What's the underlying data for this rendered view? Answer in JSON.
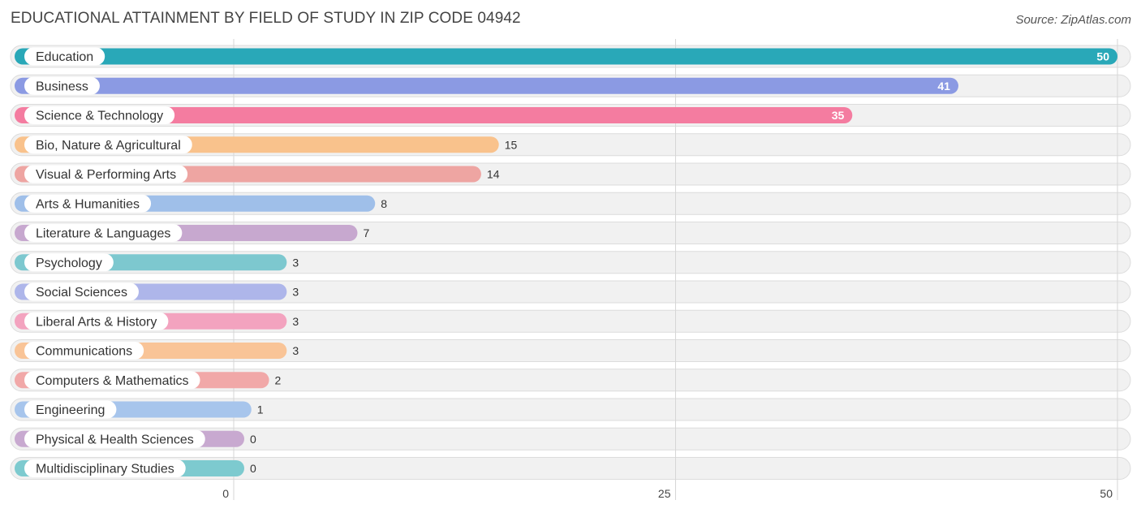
{
  "chart_data": {
    "type": "bar",
    "orientation": "horizontal",
    "title": "EDUCATIONAL ATTAINMENT BY FIELD OF STUDY IN ZIP CODE 04942",
    "source": "Source: ZipAtlas.com",
    "xlim": [
      0,
      50
    ],
    "xticks": [
      0,
      25,
      50
    ],
    "categories": [
      "Education",
      "Business",
      "Science & Technology",
      "Bio, Nature & Agricultural",
      "Visual & Performing Arts",
      "Arts & Humanities",
      "Literature & Languages",
      "Psychology",
      "Social Sciences",
      "Liberal Arts & History",
      "Communications",
      "Computers & Mathematics",
      "Engineering",
      "Physical & Health Sciences",
      "Multidisciplinary Studies"
    ],
    "values": [
      50,
      41,
      35,
      15,
      14,
      8,
      7,
      3,
      3,
      3,
      3,
      2,
      1,
      0,
      0
    ],
    "colors": [
      "#29a8b8",
      "#8b9ae3",
      "#f47ca0",
      "#f9c28c",
      "#eea5a2",
      "#9fbfe9",
      "#c7a8cf",
      "#7dc8cf",
      "#aeb6ea",
      "#f3a3bf",
      "#f9c497",
      "#f1a8a8",
      "#a7c5ec",
      "#c8a9d0",
      "#7dcacf"
    ]
  }
}
